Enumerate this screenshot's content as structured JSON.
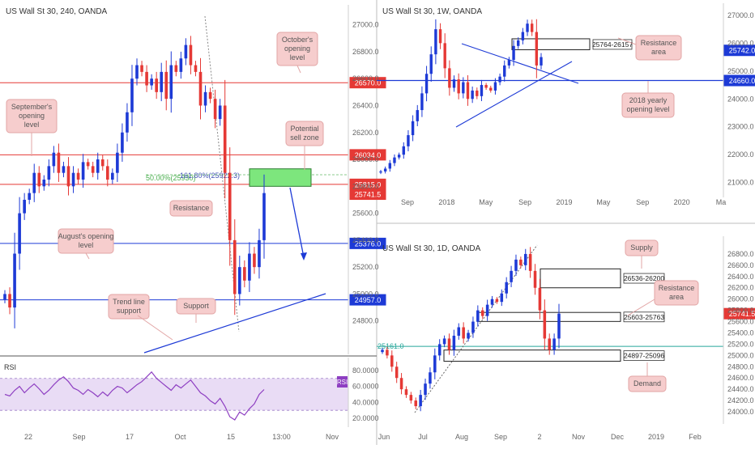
{
  "chart_data": [
    {
      "id": "h4",
      "type": "candlestick",
      "title": "US Wall St 30, 240, OANDA",
      "ylim": [
        24600,
        27100
      ],
      "y_ticks": [
        24800,
        25000,
        25200,
        25400,
        25600,
        25800,
        26000,
        26200,
        26400,
        26600,
        26800,
        27000
      ],
      "x_ticks": [
        "22",
        "Sep",
        "17",
        "Oct",
        "15",
        "13:00",
        "Nov"
      ],
      "close_path": [
        25000,
        24900,
        25300,
        25600,
        25700,
        25750,
        25900,
        25800,
        25850,
        25950,
        26050,
        25900,
        25950,
        25800,
        25900,
        25850,
        25980,
        25950,
        25900,
        26000,
        25950,
        25850,
        25900,
        26050,
        26200,
        26350,
        26600,
        26700,
        26650,
        26550,
        26600,
        26500,
        26650,
        26450,
        26700,
        26650,
        26750,
        26850,
        26700,
        26650,
        26400,
        26500,
        26450,
        26300,
        26400,
        25900,
        25400,
        25000,
        25200,
        25100,
        25300,
        25200,
        25400,
        25750
      ],
      "levels": [
        {
          "value": 26570,
          "label": "26570.0",
          "color": "#e53935"
        },
        {
          "value": 26034,
          "label": "26034.0",
          "color": "#e53935"
        },
        {
          "value": 25815,
          "label": "25815.0",
          "color": "#e53935"
        },
        {
          "value": 25376,
          "label": "25376.0",
          "color": "#1d3ad6"
        },
        {
          "value": 24957,
          "label": "24957.0",
          "color": "#1d3ad6"
        }
      ],
      "last_price": {
        "value": 25741.5,
        "label": "25741.5"
      },
      "fib_labels": {
        "fib50": "50.00%(25930)",
        "ext": "161.80%(25922.3)"
      },
      "annotations": {
        "october": "October's opening level",
        "september": "September's opening level",
        "potential": "Potential sell zone",
        "resistance": "Resistance",
        "august": "August's opening level",
        "trendline": "Trend line support",
        "support": "Support"
      },
      "rsi": {
        "label": "RSI",
        "badge": "RSI",
        "ylim": [
          15,
          90
        ],
        "y_ticks": [
          {
            "v": 80,
            "label": "80.0000"
          },
          {
            "v": 60,
            "label": "60.0000"
          },
          {
            "v": 40,
            "label": "40.0000"
          },
          {
            "v": 20,
            "label": "20.0000"
          }
        ],
        "band": [
          30,
          70
        ],
        "values": [
          50,
          48,
          55,
          60,
          52,
          58,
          63,
          57,
          50,
          55,
          62,
          68,
          72,
          66,
          58,
          55,
          50,
          56,
          52,
          47,
          53,
          48,
          55,
          60,
          58,
          52,
          57,
          62,
          66,
          72,
          78,
          70,
          65,
          60,
          55,
          62,
          58,
          63,
          68,
          60,
          52,
          48,
          42,
          38,
          45,
          35,
          22,
          18,
          28,
          24,
          32,
          38,
          50,
          56
        ]
      }
    },
    {
      "id": "w1",
      "type": "candlestick",
      "title": "US Wall St 30, 1W, OANDA",
      "ylim": [
        20700,
        27200
      ],
      "y_ticks": [
        21000,
        22000,
        23000,
        24000,
        25000,
        26000,
        27000
      ],
      "x_ticks": [
        "Sep",
        "2018",
        "May",
        "Sep",
        "2019",
        "May",
        "Sep",
        "2020",
        "Ma"
      ],
      "close_path": [
        21400,
        21500,
        21700,
        21900,
        22000,
        22300,
        22700,
        23200,
        23600,
        24200,
        24900,
        25600,
        26500,
        26000,
        25100,
        24400,
        24700,
        24200,
        24600,
        24000,
        24300,
        24100,
        24500,
        24400,
        24300,
        24600,
        24800,
        25200,
        25400,
        25900,
        26100,
        26400,
        26700,
        26400,
        25200,
        25500
      ],
      "levels": [
        {
          "value": 25742,
          "label": "25742.0",
          "color": "#1d3ad6"
        },
        {
          "value": 24660,
          "label": "24660.0",
          "color": "#1d3ad6"
        }
      ],
      "zone": {
        "label": "25764-26157",
        "low": 25764,
        "high": 26157
      },
      "annotations": {
        "resistance": "Resistance area",
        "yearly": "2018 yearly opening level"
      }
    },
    {
      "id": "d1",
      "type": "candlestick",
      "title": "US Wall St 30, 1D, OANDA",
      "ylim": [
        23900,
        27000
      ],
      "y_ticks": [
        24000,
        24200,
        24400,
        24600,
        24800,
        25000,
        25200,
        25400,
        25600,
        25800,
        26000,
        26200,
        26400,
        26600,
        26800
      ],
      "x_ticks": [
        "Jun",
        "Jul",
        "Aug",
        "Sep",
        "2",
        "Nov",
        "Dec",
        "2019",
        "Feb"
      ],
      "close_path": [
        25100,
        25000,
        24800,
        24600,
        24400,
        24300,
        24200,
        24100,
        24300,
        24500,
        24700,
        25000,
        25200,
        25300,
        25100,
        25350,
        25500,
        25300,
        25400,
        25600,
        25800,
        25700,
        25900,
        26000,
        25950,
        26100,
        26300,
        26500,
        26700,
        26600,
        26800,
        26500,
        26200,
        25800,
        25300,
        25100,
        25300,
        25742
      ],
      "levels": [
        {
          "value": 25741.5,
          "label": "25741.5",
          "color": "#e53935"
        },
        {
          "value": 25161,
          "label": "25161.0",
          "color": "#26a69a"
        }
      ],
      "zones": [
        {
          "label": "26536-26200",
          "low": 26200,
          "high": 26536
        },
        {
          "label": "25603-25763",
          "low": 25603,
          "high": 25763
        },
        {
          "label": "24897-25096",
          "low": 24897,
          "high": 25096
        }
      ],
      "annotations": {
        "supply": "Supply",
        "resistance": "Resistance area",
        "demand": "Demand"
      }
    }
  ]
}
